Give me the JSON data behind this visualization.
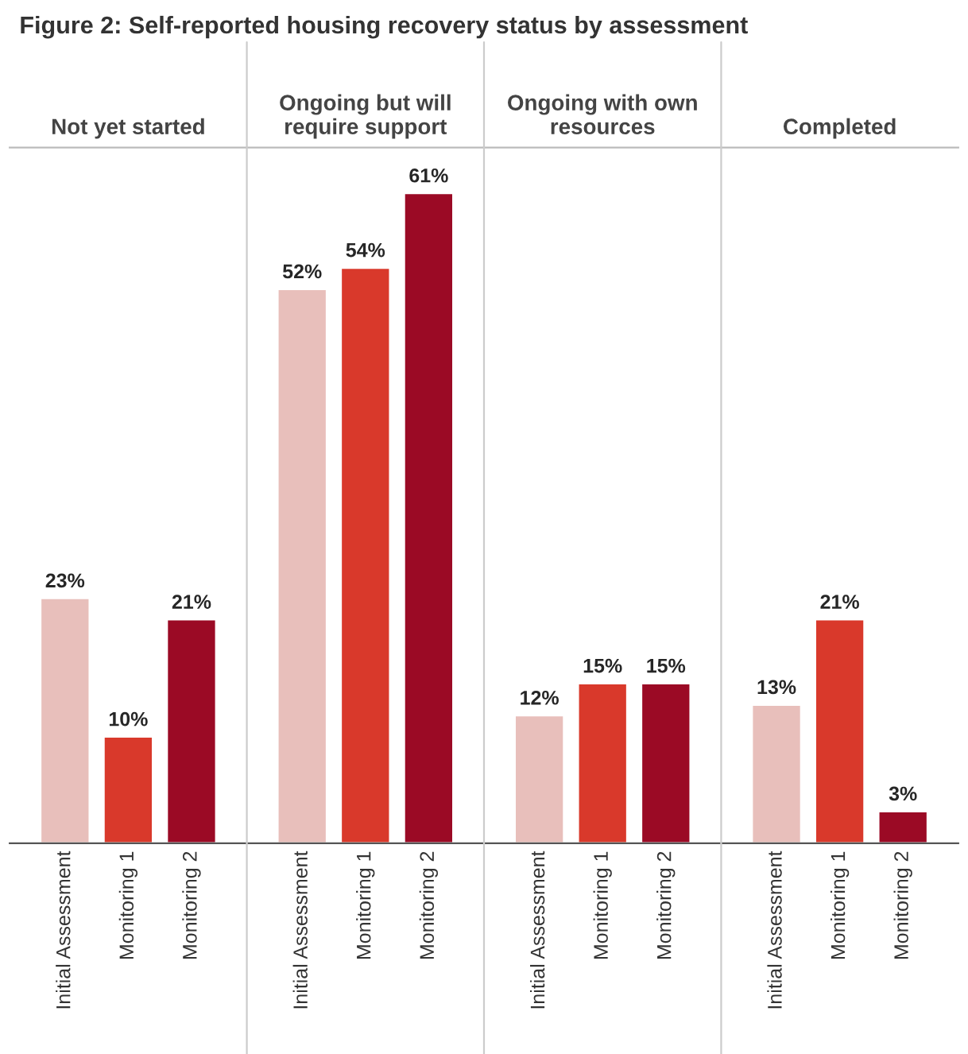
{
  "chart_data": {
    "type": "bar",
    "title": "Figure 2: Self-reported housing recovery status by assessment",
    "categories": [
      "Not yet started",
      "Ongoing but will\nrequire support",
      "Ongoing with own\nresources",
      "Completed"
    ],
    "series": [
      {
        "name": "Initial Assessment",
        "color": "#e8bfbb",
        "values": [
          23,
          52,
          12,
          13
        ],
        "value_labels": [
          "23%",
          "52%",
          "12%",
          "13%"
        ]
      },
      {
        "name": "Monitoring 1",
        "color": "#d9392b",
        "values": [
          10,
          54,
          15,
          21
        ],
        "value_labels": [
          "10%",
          "54%",
          "15%",
          "21%"
        ]
      },
      {
        "name": "Monitoring 2",
        "color": "#9b0a25",
        "values": [
          21,
          61,
          15,
          3
        ],
        "value_labels": [
          "21%",
          "61%",
          "15%",
          "3%"
        ]
      }
    ]
  }
}
